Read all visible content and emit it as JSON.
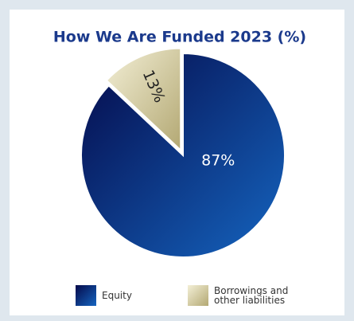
{
  "chart_data": {
    "type": "pie",
    "title": "How We Are Funded 2023 (%)",
    "categories": [
      "Equity",
      "Borrowings and other liabilities"
    ],
    "values": [
      87,
      13
    ],
    "value_labels": [
      "87%",
      "13%"
    ],
    "colors": [
      [
        "#050a4a",
        "#1565c0"
      ],
      [
        "#f3efd6",
        "#b3a873"
      ]
    ]
  }
}
